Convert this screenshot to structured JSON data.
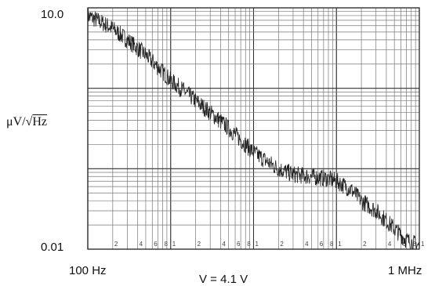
{
  "chart_data": {
    "type": "line",
    "title": "",
    "xlabel": "",
    "ylabel": "μV/√Hz",
    "ylabel_parts": {
      "prefix": "μV/",
      "radical": "√",
      "radicand": "Hz"
    },
    "x_scale": "log",
    "y_scale": "log",
    "xlim": [
      100,
      1000000
    ],
    "ylim": [
      0.01,
      10.0
    ],
    "x_tick_labels": {
      "min": "100 Hz",
      "max": "1 MHz"
    },
    "y_tick_labels": {
      "min": "0.01",
      "max": "10.0"
    },
    "annotation": "V  = 4.1 V",
    "grid": true,
    "decade_minor_labels": [
      "2",
      "4",
      "6",
      "8",
      "1"
    ],
    "series": [
      {
        "x": [
          100,
          150,
          200,
          300,
          500,
          800,
          1000,
          1500,
          2000,
          3000,
          5000,
          8000,
          10000,
          15000,
          20000,
          30000,
          50000,
          80000,
          100000,
          150000,
          200000,
          300000,
          500000,
          700000,
          1000000
        ],
        "y": [
          8.0,
          6.5,
          5.5,
          4.0,
          2.6,
          1.6,
          1.25,
          0.9,
          0.7,
          0.5,
          0.32,
          0.2,
          0.16,
          0.12,
          0.1,
          0.085,
          0.08,
          0.075,
          0.07,
          0.055,
          0.04,
          0.03,
          0.018,
          0.013,
          0.011
        ]
      }
    ]
  }
}
